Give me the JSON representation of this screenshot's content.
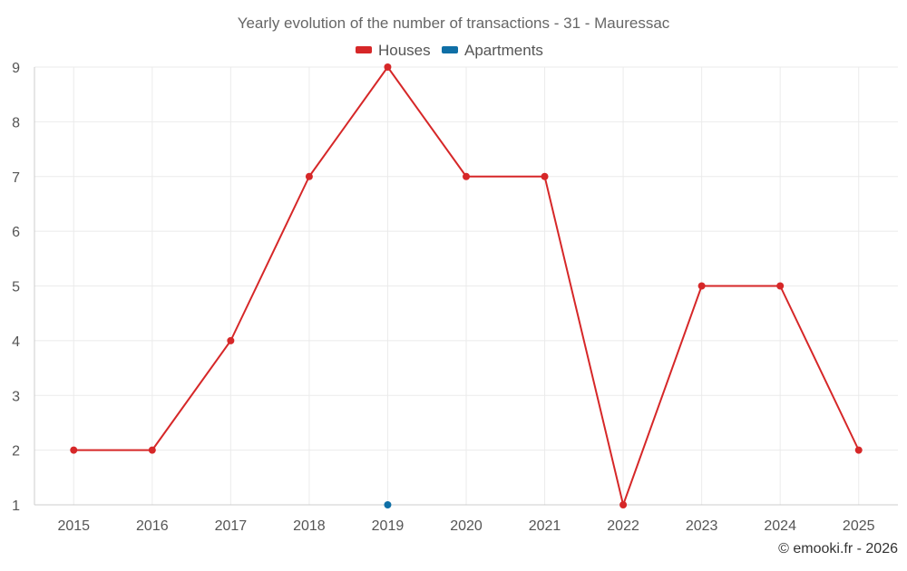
{
  "chart_data": {
    "type": "line",
    "title": "Yearly evolution of the number of transactions - 31 - Mauressac",
    "categories": [
      "2015",
      "2016",
      "2017",
      "2018",
      "2019",
      "2020",
      "2021",
      "2022",
      "2023",
      "2024",
      "2025"
    ],
    "ylim": [
      1,
      9
    ],
    "yticks": [
      1,
      2,
      3,
      4,
      5,
      6,
      7,
      8,
      9
    ],
    "grid": true,
    "legend_position": "top-center",
    "series": [
      {
        "name": "Houses",
        "color": "#d62728",
        "values": [
          2,
          2,
          4,
          7,
          9,
          7,
          7,
          1,
          5,
          5,
          2
        ]
      },
      {
        "name": "Apartments",
        "color": "#0f6fa6",
        "values": [
          null,
          null,
          null,
          null,
          1,
          null,
          null,
          null,
          null,
          null,
          null
        ]
      }
    ]
  },
  "credit": "© emooki.fr - 2026"
}
